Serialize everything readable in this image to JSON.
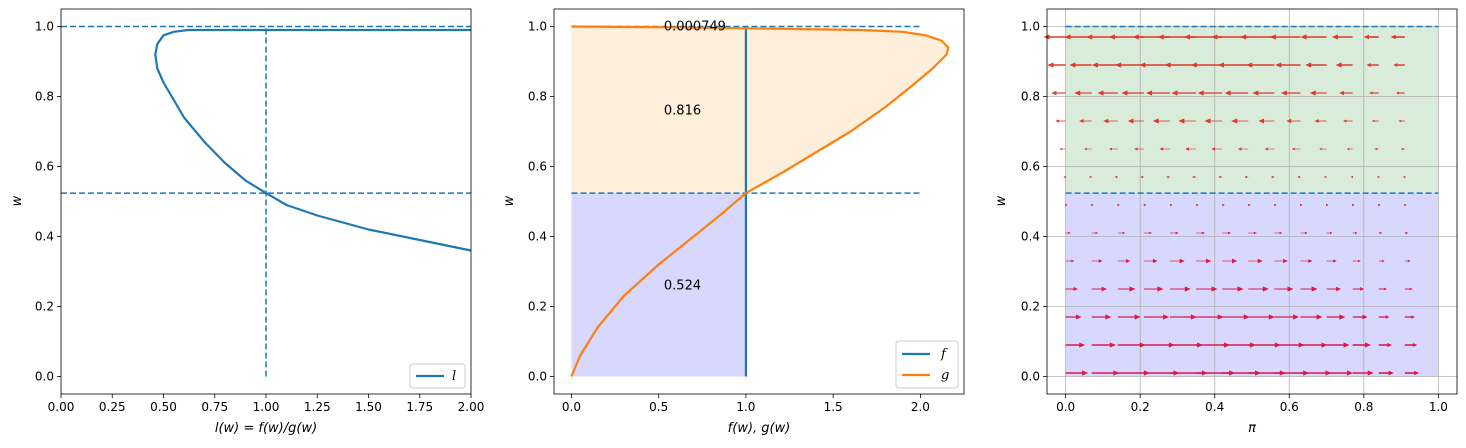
{
  "colors": {
    "blue": "#1f77b4",
    "orange": "#ff7f0e",
    "lower_fill": "#d8d8ff",
    "upper_fill": "#fdefd9",
    "green_fill": "#d9ebd9",
    "arrow_red": "#dc3a2f",
    "arrow_crimson": "#d81b4a",
    "grid": "#b0b0b0"
  },
  "chart_data": [
    {
      "type": "line",
      "xlabel": "l(w) = f(w)/g(w)",
      "ylabel": "w",
      "xlim": [
        0,
        2
      ],
      "ylim": [
        -0.05,
        1.05
      ],
      "xticks": [
        "0.00",
        "0.25",
        "0.50",
        "0.75",
        "1.00",
        "1.25",
        "1.50",
        "1.75",
        "2.00"
      ],
      "yticks": [
        "0.0",
        "0.2",
        "0.4",
        "0.6",
        "0.8",
        "1.0"
      ],
      "legend": {
        "placement": "lower-right",
        "entries": [
          "l"
        ]
      },
      "series": [
        {
          "name": "l",
          "x": [
            2.0,
            1.75,
            1.5,
            1.25,
            1.1,
            1.0,
            0.9,
            0.8,
            0.7,
            0.6,
            0.55,
            0.5,
            0.47,
            0.46,
            0.47,
            0.5,
            0.55,
            0.62,
            1.0,
            1.5,
            2.0
          ],
          "y": [
            0.36,
            0.39,
            0.42,
            0.46,
            0.49,
            0.524,
            0.56,
            0.61,
            0.67,
            0.74,
            0.79,
            0.84,
            0.88,
            0.92,
            0.95,
            0.975,
            0.985,
            0.99,
            0.99,
            0.99,
            0.99
          ]
        }
      ],
      "reference_lines": {
        "hlines": [
          1.0,
          0.524
        ],
        "vlines": [
          1.0
        ]
      }
    },
    {
      "type": "area",
      "xlabel": "f(w), g(w)",
      "ylabel": "w",
      "xlim": [
        -0.1,
        2.25
      ],
      "ylim": [
        -0.05,
        1.05
      ],
      "xticks": [
        "0.0",
        "0.5",
        "1.0",
        "1.5",
        "2.0"
      ],
      "yticks": [
        "0.0",
        "0.2",
        "0.4",
        "0.6",
        "0.8",
        "1.0"
      ],
      "legend": {
        "placement": "lower-right",
        "entries": [
          "f",
          "g"
        ]
      },
      "series": [
        {
          "name": "f",
          "x": [
            1.0,
            1.0
          ],
          "y": [
            0.0,
            1.0
          ]
        },
        {
          "name": "g",
          "x": [
            0.0,
            0.05,
            0.15,
            0.3,
            0.5,
            0.7,
            0.85,
            1.0,
            1.2,
            1.4,
            1.6,
            1.8,
            1.95,
            2.07,
            2.15,
            2.16,
            2.12,
            2.03,
            1.9,
            1.66,
            1.0,
            0.5,
            0.0
          ],
          "y": [
            0.0,
            0.06,
            0.14,
            0.23,
            0.32,
            0.4,
            0.46,
            0.524,
            0.58,
            0.64,
            0.7,
            0.77,
            0.83,
            0.88,
            0.92,
            0.94,
            0.96,
            0.975,
            0.985,
            0.99,
            0.995,
            0.998,
            1.0
          ]
        }
      ],
      "annotations": [
        {
          "text": "0.000749",
          "x": 0.53,
          "y": 1.0
        },
        {
          "text": "0.816",
          "x": 0.53,
          "y": 0.76
        },
        {
          "text": "0.524",
          "x": 0.53,
          "y": 0.26
        }
      ],
      "reference_lines": {
        "hlines": [
          1.0,
          0.524
        ],
        "hline_xmax": 2.0
      }
    },
    {
      "type": "scatter",
      "xlabel": "π",
      "ylabel": "w",
      "xlim": [
        -0.05,
        1.05
      ],
      "ylim": [
        -0.05,
        1.05
      ],
      "xticks": [
        "0.0",
        "0.2",
        "0.4",
        "0.6",
        "0.8",
        "1.0"
      ],
      "yticks": [
        "0.0",
        "0.2",
        "0.4",
        "0.6",
        "0.8",
        "1.0"
      ],
      "grid": true,
      "regions": [
        {
          "name": "lower",
          "w_range": [
            0,
            0.524
          ],
          "flow": "right"
        },
        {
          "name": "upper",
          "w_range": [
            0.524,
            1.0
          ],
          "flow": "left"
        }
      ],
      "threshold_w": 0.524,
      "arrow_rows_w": [
        0.01,
        0.09,
        0.17,
        0.25,
        0.33,
        0.41,
        0.49,
        0.57,
        0.65,
        0.73,
        0.81,
        0.89,
        0.97
      ],
      "arrow_cols_pi": [
        0.0,
        0.07,
        0.14,
        0.21,
        0.28,
        0.35,
        0.42,
        0.49,
        0.56,
        0.63,
        0.7,
        0.77,
        0.84,
        0.91
      ],
      "reference_lines": {
        "hlines": [
          1.0,
          0.524
        ]
      }
    }
  ]
}
